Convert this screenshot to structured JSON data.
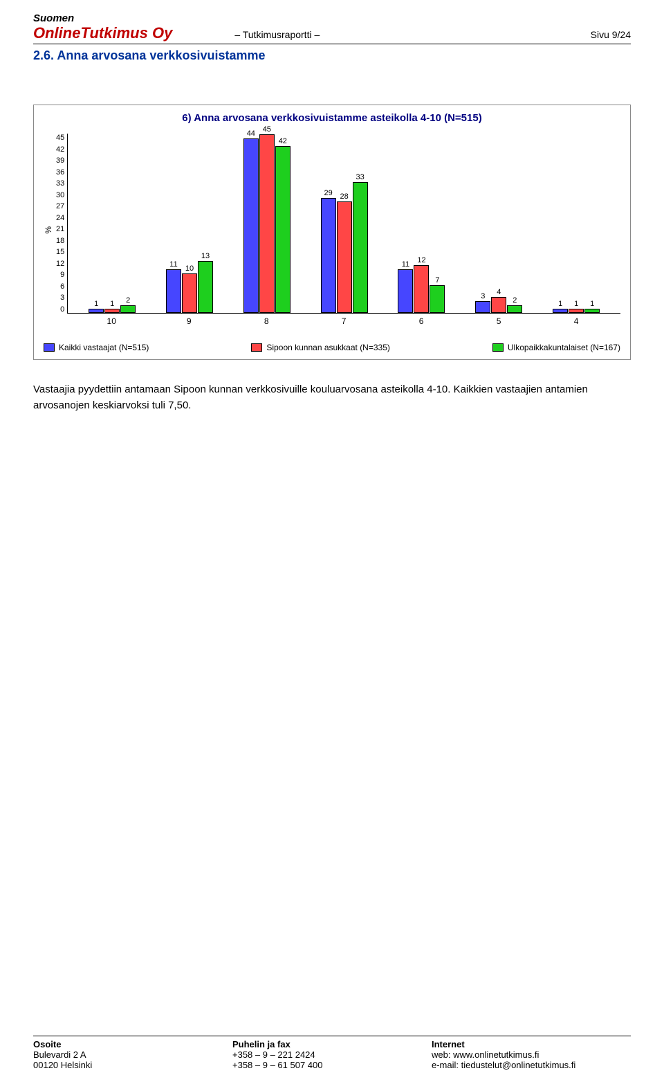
{
  "header": {
    "line1": "Suomen",
    "brand": "OnlineTutkimus Oy",
    "report_label": "– Tutkimusraportti –",
    "page": "Sivu 9/24"
  },
  "section_title": "2.6. Anna arvosana verkkosivuistamme",
  "chart": {
    "title": "6) Anna arvosana verkkosivuistamme asteikolla 4-10 (N=515)",
    "y_label": "%",
    "y_ticks": [
      "45",
      "42",
      "39",
      "36",
      "33",
      "30",
      "27",
      "24",
      "21",
      "18",
      "15",
      "12",
      "9",
      "6",
      "3",
      "0"
    ],
    "y_max": 45,
    "categories": [
      "10",
      "9",
      "8",
      "7",
      "6",
      "5",
      "4"
    ],
    "series": [
      {
        "label": "Kaikki vastaajat (N=515)",
        "color": "#4646ff",
        "values": [
          1,
          11,
          44,
          29,
          11,
          3,
          1
        ]
      },
      {
        "label": "Sipoon kunnan asukkaat (N=335)",
        "color": "#ff4646",
        "values": [
          1,
          10,
          45,
          28,
          12,
          4,
          1
        ]
      },
      {
        "label": "Ulkopaikkakuntalaiset (N=167)",
        "color": "#1ecf1e",
        "values": [
          2,
          13,
          42,
          33,
          7,
          2,
          1
        ]
      }
    ]
  },
  "body_text": "Vastaajia pyydettiin antamaan Sipoon kunnan verkkosivuille kouluarvosana asteikolla 4-10. Kaikkien vastaajien antamien arvosanojen keskiarvoksi tuli 7,50.",
  "footer": {
    "col1": {
      "head": "Osoite",
      "l1": "Bulevardi 2 A",
      "l2": "00120 Helsinki"
    },
    "col2": {
      "head": "Puhelin ja fax",
      "l1": "+358 – 9 – 221 2424",
      "l2": "+358 – 9 – 61 507 400"
    },
    "col3": {
      "head": "Internet",
      "l1": "web: www.onlinetutkimus.fi",
      "l2": "e-mail: tiedustelut@onlinetutkimus.fi"
    }
  }
}
